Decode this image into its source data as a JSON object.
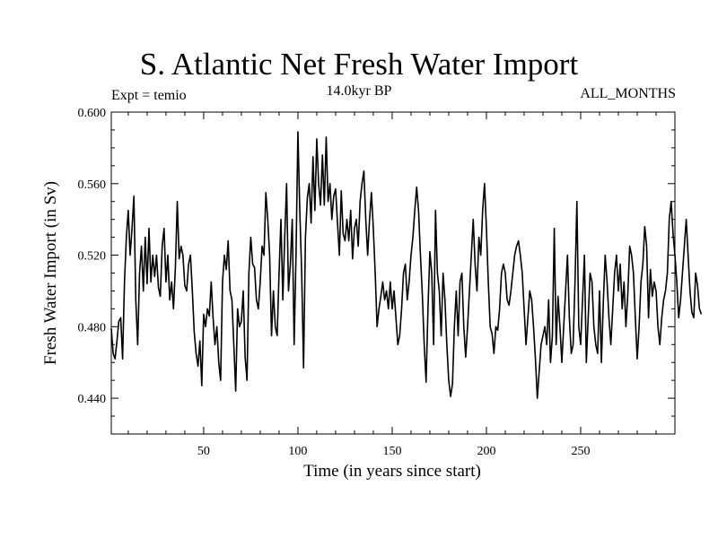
{
  "chart_data": {
    "type": "line",
    "title": "S. Atlantic Net Fresh Water Import",
    "subtitle": "14.0kyr BP",
    "left_label": "Expt = temio",
    "right_label": "ALL_MONTHS",
    "xlabel": "Time (in years since start)",
    "ylabel": "Fresh Water Import (in Sv)",
    "xlim": [
      1,
      300
    ],
    "ylim": [
      0.42,
      0.6
    ],
    "x_ticks": [
      50,
      100,
      150,
      200,
      250
    ],
    "x_tick_labels": [
      "50",
      "100",
      "150",
      "200",
      "250"
    ],
    "y_ticks": [
      0.44,
      0.48,
      0.52,
      0.56,
      0.6
    ],
    "y_tick_labels": [
      "0.440",
      "0.480",
      "0.520",
      "0.560",
      "0.600"
    ],
    "series": [
      {
        "name": "S. Atlantic Net Fresh Water Import",
        "x_start": 1,
        "x_step": 1,
        "values": [
          0.479,
          0.465,
          0.462,
          0.472,
          0.483,
          0.485,
          0.462,
          0.505,
          0.53,
          0.545,
          0.52,
          0.535,
          0.553,
          0.495,
          0.47,
          0.51,
          0.525,
          0.5,
          0.53,
          0.504,
          0.535,
          0.505,
          0.52,
          0.508,
          0.52,
          0.502,
          0.497,
          0.525,
          0.535,
          0.505,
          0.52,
          0.495,
          0.505,
          0.49,
          0.513,
          0.55,
          0.518,
          0.525,
          0.52,
          0.503,
          0.5,
          0.515,
          0.52,
          0.5,
          0.477,
          0.465,
          0.458,
          0.472,
          0.447,
          0.487,
          0.48,
          0.49,
          0.486,
          0.505,
          0.485,
          0.47,
          0.48,
          0.46,
          0.45,
          0.505,
          0.52,
          0.512,
          0.528,
          0.5,
          0.495,
          0.47,
          0.444,
          0.49,
          0.48,
          0.483,
          0.5,
          0.463,
          0.45,
          0.51,
          0.53,
          0.515,
          0.513,
          0.495,
          0.49,
          0.505,
          0.525,
          0.52,
          0.555,
          0.54,
          0.52,
          0.475,
          0.5,
          0.48,
          0.475,
          0.51,
          0.54,
          0.495,
          0.53,
          0.56,
          0.5,
          0.515,
          0.54,
          0.47,
          0.52,
          0.589,
          0.545,
          0.51,
          0.457,
          0.53,
          0.552,
          0.56,
          0.538,
          0.575,
          0.545,
          0.585,
          0.56,
          0.548,
          0.576,
          0.548,
          0.586,
          0.55,
          0.56,
          0.54,
          0.553,
          0.557,
          0.538,
          0.52,
          0.556,
          0.532,
          0.528,
          0.54,
          0.528,
          0.545,
          0.518,
          0.535,
          0.54,
          0.525,
          0.55,
          0.56,
          0.567,
          0.54,
          0.52,
          0.54,
          0.555,
          0.535,
          0.51,
          0.48,
          0.49,
          0.497,
          0.505,
          0.495,
          0.5,
          0.49,
          0.505,
          0.49,
          0.5,
          0.485,
          0.47,
          0.475,
          0.49,
          0.51,
          0.515,
          0.495,
          0.505,
          0.52,
          0.53,
          0.545,
          0.558,
          0.545,
          0.52,
          0.498,
          0.47,
          0.449,
          0.49,
          0.522,
          0.51,
          0.47,
          0.545,
          0.51,
          0.5,
          0.475,
          0.51,
          0.495,
          0.47,
          0.45,
          0.441,
          0.448,
          0.48,
          0.5,
          0.475,
          0.505,
          0.51,
          0.48,
          0.463,
          0.48,
          0.5,
          0.52,
          0.54,
          0.515,
          0.5,
          0.53,
          0.52,
          0.545,
          0.56,
          0.535,
          0.505,
          0.48,
          0.476,
          0.465,
          0.48,
          0.478,
          0.49,
          0.51,
          0.515,
          0.51,
          0.495,
          0.492,
          0.5,
          0.51,
          0.52,
          0.525,
          0.528,
          0.52,
          0.51,
          0.49,
          0.47,
          0.485,
          0.5,
          0.495,
          0.48,
          0.462,
          0.44,
          0.455,
          0.47,
          0.475,
          0.48,
          0.47,
          0.495,
          0.46,
          0.475,
          0.535,
          0.47,
          0.497,
          0.48,
          0.46,
          0.48,
          0.5,
          0.52,
          0.485,
          0.465,
          0.47,
          0.505,
          0.55,
          0.48,
          0.47,
          0.495,
          0.52,
          0.46,
          0.485,
          0.51,
          0.505,
          0.48,
          0.47,
          0.465,
          0.5,
          0.46,
          0.493,
          0.52,
          0.505,
          0.485,
          0.47,
          0.49,
          0.51,
          0.52,
          0.5,
          0.515,
          0.49,
          0.505,
          0.48,
          0.498,
          0.525,
          0.52,
          0.51,
          0.485,
          0.462,
          0.48,
          0.505,
          0.515,
          0.536,
          0.525,
          0.485,
          0.512,
          0.497,
          0.505,
          0.5,
          0.48,
          0.47,
          0.485,
          0.495,
          0.5,
          0.51,
          0.54,
          0.55,
          0.532,
          0.52,
          0.505,
          0.485,
          0.495,
          0.51,
          0.525,
          0.54,
          0.52,
          0.5,
          0.488,
          0.485,
          0.51,
          0.503,
          0.49,
          0.487
        ]
      }
    ]
  }
}
